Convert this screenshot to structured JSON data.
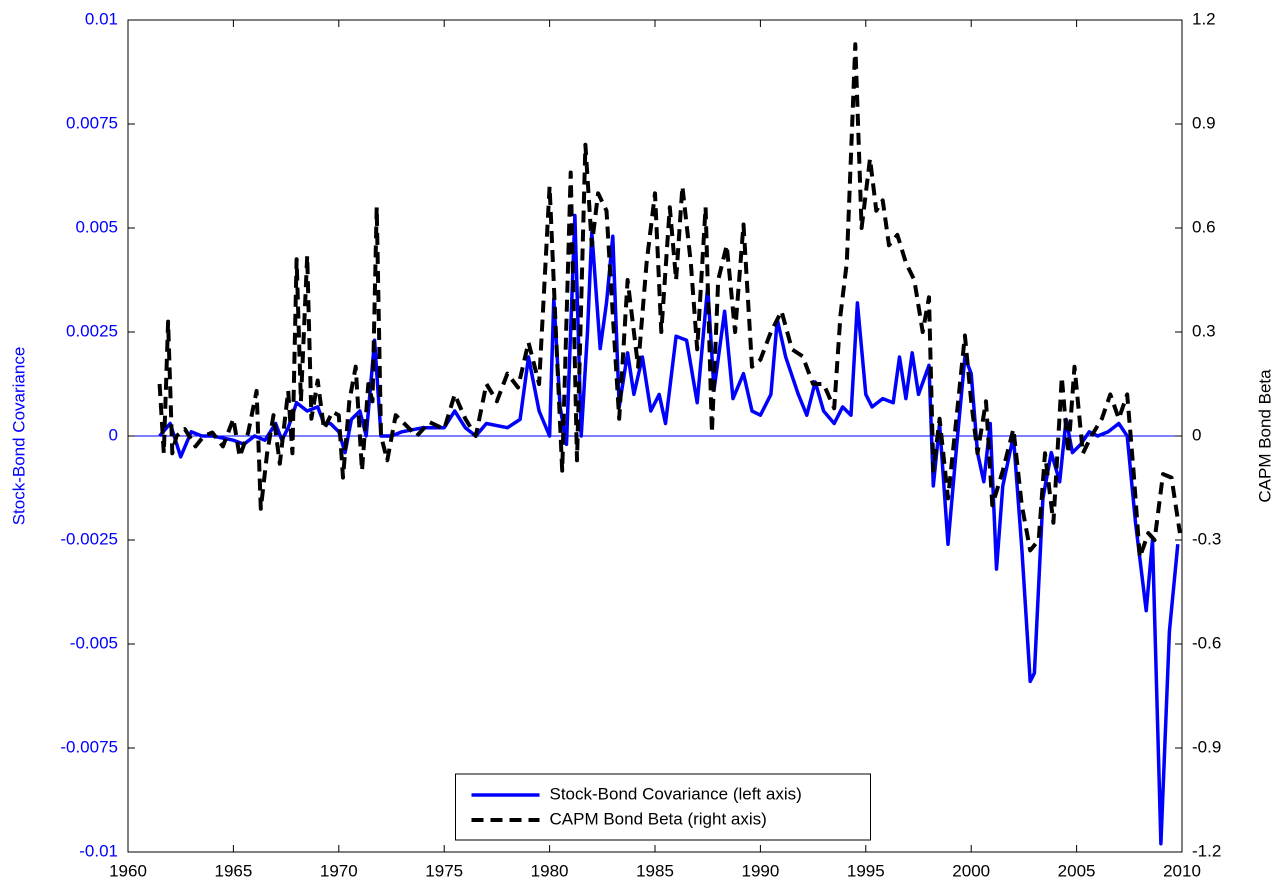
{
  "chart_data": {
    "type": "line",
    "ylabel": "Stock-Bond Covariance",
    "y2label": "CAPM Bond Beta",
    "xlim": [
      1960,
      2010
    ],
    "xticks": [
      1960,
      1965,
      1970,
      1975,
      1980,
      1985,
      1990,
      1995,
      2000,
      2005,
      2010
    ],
    "ylim": [
      -0.01,
      0.01
    ],
    "yticks": [
      -0.01,
      -0.0075,
      -0.005,
      -0.0025,
      0,
      0.0025,
      0.005,
      0.0075,
      0.01
    ],
    "y2lim": [
      -1.2,
      1.2
    ],
    "y2ticks": [
      -1.2,
      -0.9,
      -0.6,
      -0.3,
      0,
      0.3,
      0.6,
      0.9,
      1.2
    ],
    "ylabel_color": "#0000ff",
    "zero_line_color": "#0000ff",
    "legend": "lower center",
    "series": [
      {
        "name": "Stock-Bond Covariance (left axis)",
        "color": "#0000ff",
        "linestyle": "solid",
        "axis": "y",
        "x": [
          1961.5,
          1962,
          1962.5,
          1963,
          1963.5,
          1964,
          1965,
          1965.5,
          1966,
          1966.5,
          1967,
          1967.3,
          1967.6,
          1968,
          1968.5,
          1969,
          1969.3,
          1969.6,
          1970,
          1970.3,
          1970.6,
          1971,
          1971.3,
          1971.7,
          1972,
          1972.5,
          1973,
          1974,
          1975,
          1975.5,
          1976,
          1976.5,
          1977,
          1978,
          1978.6,
          1979,
          1979.5,
          1980,
          1980.2,
          1980.5,
          1980.8,
          1981.2,
          1981.5,
          1981.8,
          1982,
          1982.4,
          1982.7,
          1983,
          1983.3,
          1983.7,
          1984,
          1984.4,
          1984.8,
          1985.2,
          1985.5,
          1986,
          1986.5,
          1987,
          1987.5,
          1987.8,
          1988.3,
          1988.7,
          1989.2,
          1989.6,
          1990,
          1990.5,
          1990.8,
          1991.2,
          1991.8,
          1992.2,
          1992.6,
          1993,
          1993.5,
          1993.9,
          1994.3,
          1994.6,
          1995,
          1995.3,
          1995.8,
          1996.3,
          1996.6,
          1996.9,
          1997.2,
          1997.5,
          1998,
          1998.2,
          1998.5,
          1998.9,
          1999.3,
          1999.7,
          2000,
          2000.3,
          2000.6,
          2000.9,
          2001.2,
          2001.5,
          2002,
          2002.4,
          2002.8,
          2003,
          2003.4,
          2003.8,
          2004.2,
          2004.5,
          2004.8,
          2005.2,
          2005.6,
          2006,
          2006.5,
          2007,
          2007.4,
          2007.8,
          2008.3,
          2008.6,
          2009,
          2009.4,
          2009.8
        ],
        "values": [
          0.0,
          0.0003,
          -0.0005,
          0.0001,
          0.0,
          0.0,
          -0.0001,
          -0.0002,
          0.0,
          -0.0001,
          0.0003,
          -0.0001,
          0.0002,
          0.0008,
          0.0006,
          0.0007,
          0.0003,
          0.0003,
          0.0001,
          -0.0004,
          0.0004,
          0.0006,
          0.0,
          0.0023,
          0.0,
          0.0,
          0.0001,
          0.0002,
          0.0002,
          0.0006,
          0.0002,
          0.0,
          0.0003,
          0.0002,
          0.0004,
          0.0019,
          0.0006,
          0.0,
          0.0033,
          0.0007,
          -0.0002,
          0.0053,
          0.0,
          0.0025,
          0.0049,
          0.0021,
          0.0032,
          0.0048,
          0.0007,
          0.002,
          0.001,
          0.0019,
          0.0006,
          0.001,
          0.0003,
          0.0024,
          0.0023,
          0.0008,
          0.0036,
          0.0011,
          0.003,
          0.0009,
          0.0015,
          0.0006,
          0.0005,
          0.001,
          0.0028,
          0.0019,
          0.001,
          0.0005,
          0.0013,
          0.0006,
          0.0003,
          0.0007,
          0.0005,
          0.0032,
          0.001,
          0.0007,
          0.0009,
          0.0008,
          0.0019,
          0.0009,
          0.002,
          0.001,
          0.0017,
          -0.0012,
          0.0003,
          -0.0026,
          -0.0003,
          0.0019,
          0.0015,
          -0.0004,
          -0.0011,
          0.0003,
          -0.0032,
          -0.0012,
          0.0,
          -0.0027,
          -0.0059,
          -0.0057,
          -0.0015,
          -0.0004,
          -0.0011,
          0.0004,
          -0.0004,
          -0.0002,
          0.0001,
          0.0,
          0.0001,
          0.0003,
          0.0,
          -0.0021,
          -0.0042,
          -0.0025,
          -0.0098,
          -0.0047,
          -0.0026
        ]
      },
      {
        "name": "CAPM Bond Beta (right axis)",
        "color": "#000000",
        "linestyle": "dashed",
        "axis": "y2",
        "x": [
          1961.5,
          1961.7,
          1961.9,
          1962.1,
          1962.3,
          1962.7,
          1963.2,
          1963.6,
          1964,
          1964.5,
          1965,
          1965.3,
          1965.7,
          1966.1,
          1966.3,
          1966.6,
          1966.9,
          1967.2,
          1967.6,
          1967.8,
          1968,
          1968.2,
          1968.5,
          1968.7,
          1969,
          1969.3,
          1969.7,
          1970,
          1970.2,
          1970.5,
          1970.8,
          1971.1,
          1971.4,
          1971.6,
          1971.8,
          1972,
          1972.3,
          1972.7,
          1973.2,
          1973.7,
          1974.3,
          1975,
          1975.5,
          1976,
          1976.5,
          1977,
          1977.5,
          1978,
          1978.5,
          1979,
          1979.5,
          1980,
          1980.3,
          1980.6,
          1981,
          1981.3,
          1981.7,
          1982,
          1982.3,
          1982.7,
          1983,
          1983.3,
          1983.7,
          1984.2,
          1984.6,
          1985,
          1985.3,
          1985.7,
          1986,
          1986.3,
          1986.7,
          1987,
          1987.4,
          1987.7,
          1988,
          1988.4,
          1988.8,
          1989.2,
          1989.6,
          1990,
          1990.5,
          1991,
          1991.5,
          1992,
          1992.5,
          1993,
          1993.5,
          1993.8,
          1994.1,
          1994.5,
          1994.8,
          1995.2,
          1995.5,
          1995.8,
          1996.1,
          1996.5,
          1996.9,
          1997.3,
          1997.7,
          1998,
          1998.2,
          1998.5,
          1998.9,
          1999.3,
          1999.7,
          2000,
          2000.3,
          2000.7,
          2001,
          2001.5,
          2002,
          2002.4,
          2002.8,
          2003.2,
          2003.5,
          2003.9,
          2004.3,
          2004.6,
          2004.9,
          2005.3,
          2005.7,
          2006.2,
          2006.6,
          2007,
          2007.4,
          2007.7,
          2008,
          2008.4,
          2008.7,
          2009.1,
          2009.5,
          2009.9
        ],
        "values": [
          0.15,
          -0.05,
          0.33,
          -0.05,
          0.0,
          0.02,
          -0.03,
          0.0,
          0.01,
          -0.03,
          0.05,
          -0.06,
          0.01,
          0.13,
          -0.21,
          -0.05,
          0.06,
          -0.08,
          0.13,
          -0.05,
          0.51,
          0.1,
          0.52,
          0.05,
          0.16,
          0.02,
          0.07,
          0.06,
          -0.12,
          0.1,
          0.2,
          -0.1,
          0.15,
          0.1,
          0.66,
          0.0,
          -0.07,
          0.06,
          0.03,
          0.0,
          0.04,
          0.02,
          0.12,
          0.05,
          0.0,
          0.15,
          0.1,
          0.18,
          0.14,
          0.27,
          0.15,
          0.72,
          0.3,
          -0.1,
          0.76,
          -0.07,
          0.84,
          0.55,
          0.7,
          0.65,
          0.35,
          0.05,
          0.45,
          0.2,
          0.5,
          0.7,
          0.3,
          0.66,
          0.45,
          0.72,
          0.5,
          0.25,
          0.66,
          0.01,
          0.45,
          0.55,
          0.3,
          0.61,
          0.2,
          0.22,
          0.3,
          0.36,
          0.25,
          0.23,
          0.15,
          0.15,
          0.08,
          0.35,
          0.5,
          1.13,
          0.6,
          0.8,
          0.65,
          0.68,
          0.55,
          0.58,
          0.5,
          0.45,
          0.3,
          0.4,
          -0.1,
          0.05,
          -0.18,
          0.05,
          0.29,
          0.1,
          -0.05,
          0.1,
          -0.2,
          -0.1,
          0.02,
          -0.2,
          -0.33,
          -0.3,
          -0.05,
          -0.25,
          0.17,
          -0.05,
          0.2,
          -0.05,
          0.0,
          0.05,
          0.12,
          0.05,
          0.12,
          -0.1,
          -0.35,
          -0.28,
          -0.3,
          -0.11,
          -0.12,
          -0.28
        ]
      }
    ]
  }
}
